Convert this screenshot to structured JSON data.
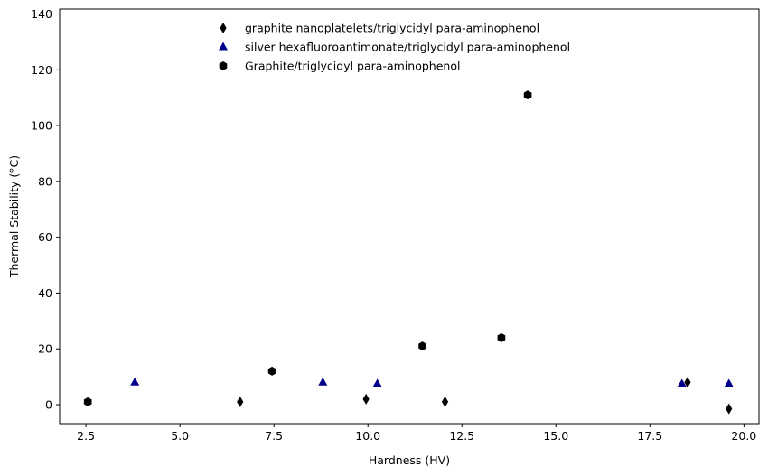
{
  "chart_data": {
    "type": "scatter",
    "xlabel": "Hardness (HV)",
    "ylabel": "Thermal Stability (°C)",
    "xlim": [
      1.8,
      20.4
    ],
    "ylim": [
      -6.8,
      141.8
    ],
    "xticks": [
      2.5,
      5.0,
      7.5,
      10.0,
      12.5,
      15.0,
      17.5,
      20.0
    ],
    "yticks": [
      0,
      20,
      40,
      60,
      80,
      100,
      120,
      140
    ],
    "grid": false,
    "legend_position": "top-center",
    "series": [
      {
        "name": "graphite nanoplatelets/triglycidyl para-aminophenol",
        "marker": "thin-diamond",
        "color": "#000000",
        "points": [
          {
            "x": 6.6,
            "y": 1
          },
          {
            "x": 9.95,
            "y": 2
          },
          {
            "x": 12.05,
            "y": 1
          },
          {
            "x": 18.5,
            "y": 8
          },
          {
            "x": 19.6,
            "y": -1.5
          }
        ]
      },
      {
        "name": "silver hexafluoroantimonate/triglycidyl para-aminophenol",
        "marker": "triangle",
        "color": "#00008b",
        "points": [
          {
            "x": 3.8,
            "y": 8
          },
          {
            "x": 8.8,
            "y": 8
          },
          {
            "x": 10.25,
            "y": 7.5
          },
          {
            "x": 18.35,
            "y": 7.5
          },
          {
            "x": 19.6,
            "y": 7.5
          }
        ]
      },
      {
        "name": "Graphite/triglycidyl para-aminophenol",
        "marker": "hexagon",
        "color": "#000000",
        "points": [
          {
            "x": 2.55,
            "y": 1
          },
          {
            "x": 7.45,
            "y": 12
          },
          {
            "x": 11.45,
            "y": 21
          },
          {
            "x": 13.55,
            "y": 24
          },
          {
            "x": 14.25,
            "y": 111
          }
        ]
      }
    ]
  }
}
